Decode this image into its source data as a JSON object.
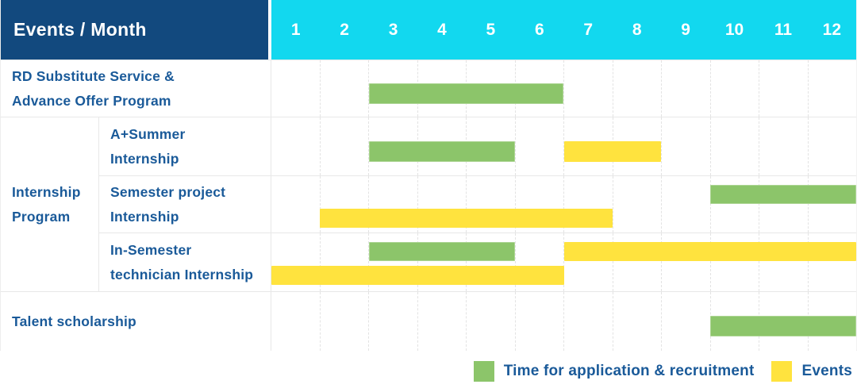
{
  "colors": {
    "header_bg": "#12497E",
    "month_header_bg": "#12D8EF",
    "application_green": "#8CC56A",
    "event_yellow": "#FFE33E",
    "label_blue": "#1A5A99"
  },
  "header": {
    "title": "Events / Month",
    "months": [
      "1",
      "2",
      "3",
      "4",
      "5",
      "6",
      "7",
      "8",
      "9",
      "10",
      "11",
      "12"
    ]
  },
  "group_label_lines": [
    "Internship",
    "Program"
  ],
  "chart_data": {
    "type": "bar",
    "subtype": "gantt",
    "xlabel": "Month",
    "x_range": [
      1,
      12
    ],
    "grid": true,
    "legend_position": "bottom-right",
    "rows": [
      {
        "name": "rd-substitute-service-advance-offer-program",
        "label_lines": [
          "RD Substitute Service &",
          "Advance Offer Program"
        ],
        "group": null,
        "lanes": [
          [
            {
              "type": "application",
              "start_month": 3,
              "end_month": 6
            }
          ]
        ]
      },
      {
        "name": "a-plus-summer-internship",
        "label_lines": [
          "A+Summer",
          "Internship"
        ],
        "group": "Internship Program",
        "lanes": [
          [
            {
              "type": "application",
              "start_month": 3,
              "end_month": 5
            },
            {
              "type": "event",
              "start_month": 7,
              "end_month": 8
            }
          ]
        ]
      },
      {
        "name": "semester-project-internship",
        "label_lines": [
          "Semester project",
          "Internship"
        ],
        "group": "Internship Program",
        "lanes": [
          [
            {
              "type": "application",
              "start_month": 10,
              "end_month": 12
            }
          ],
          [
            {
              "type": "event",
              "start_month": 2,
              "end_month": 7
            }
          ]
        ]
      },
      {
        "name": "in-semester-technician-internship",
        "label_lines": [
          "In-Semester",
          "technician Internship"
        ],
        "group": "Internship Program",
        "lanes": [
          [
            {
              "type": "application",
              "start_month": 3,
              "end_month": 5
            },
            {
              "type": "event",
              "start_month": 7,
              "end_month": 12
            }
          ],
          [
            {
              "type": "event",
              "start_month": 1,
              "end_month": 6
            }
          ]
        ]
      },
      {
        "name": "talent-scholarship",
        "label_lines": [
          "Talent scholarship"
        ],
        "group": null,
        "lanes": [
          [
            {
              "type": "application",
              "start_month": 10,
              "end_month": 12
            }
          ]
        ]
      }
    ]
  },
  "legend": {
    "application_label": "Time for application & recruitment",
    "events_label": "Events"
  }
}
